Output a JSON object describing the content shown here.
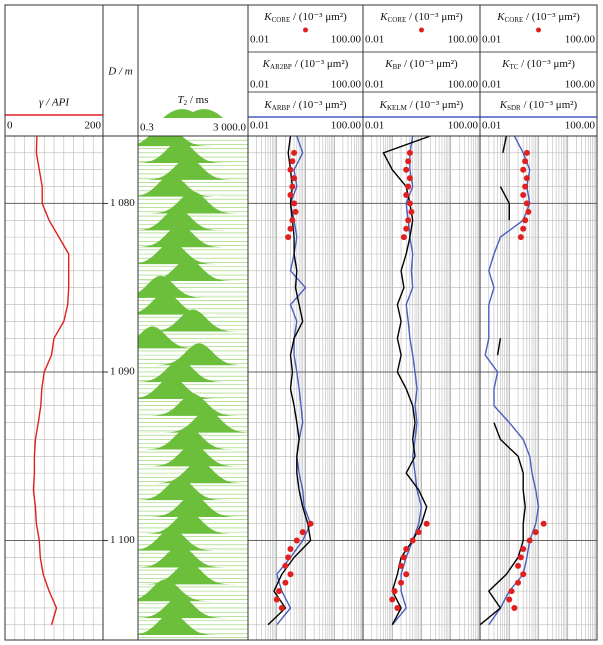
{
  "chart_data": [
    {
      "type": "line",
      "xlabel": "γ / API",
      "xlim": [
        0,
        200
      ],
      "xticks": [
        0,
        200
      ],
      "y": [
        1076,
        1077,
        1078,
        1079,
        1080,
        1081,
        1082,
        1083,
        1084,
        1085,
        1086,
        1087,
        1088,
        1089,
        1090,
        1091,
        1092,
        1093,
        1094,
        1095,
        1096,
        1097,
        1098,
        1099,
        1100,
        1101,
        1102,
        1103,
        1104,
        1105
      ],
      "series": [
        {
          "color": "#e02020",
          "values": [
            65,
            64,
            70,
            76,
            76,
            90,
            110,
            130,
            130,
            130,
            128,
            120,
            100,
            95,
            80,
            75,
            73,
            68,
            62,
            60,
            60,
            58,
            62,
            64,
            70,
            72,
            78,
            90,
            105,
            95
          ]
        }
      ]
    },
    {
      "type": "depth",
      "ylabel": "D / m",
      "ylim": [
        1076,
        1105.9
      ],
      "yticks": [
        {
          "value": 1080,
          "label": "1 080"
        },
        {
          "value": 1090,
          "label": "1 090"
        },
        {
          "value": 1100,
          "label": "1 100"
        }
      ]
    },
    {
      "type": "t2",
      "xlabel": {
        "symbol": "T",
        "subscript": "2",
        "unit": " / ms"
      },
      "log": true,
      "xlim": [
        0.3,
        3000
      ],
      "xticks": [
        0.3,
        {
          "value": 3000,
          "label": "3 000.0"
        }
      ],
      "color": "#6cbf3a",
      "y": [
        1076,
        1077,
        1078,
        1079,
        1080,
        1081,
        1082,
        1083,
        1084,
        1085,
        1086,
        1087,
        1088,
        1089,
        1090,
        1091,
        1092,
        1093,
        1094,
        1095,
        1096,
        1097,
        1098,
        1099,
        1100,
        1101,
        1102,
        1103,
        1104,
        1105
      ],
      "values": [
        3,
        10,
        20,
        5,
        30,
        8,
        10,
        5,
        20,
        2,
        3,
        30,
        1,
        50,
        10,
        5,
        30,
        100,
        20,
        30,
        50,
        10,
        30,
        20,
        5,
        10,
        20,
        3,
        10,
        5
      ]
    },
    {
      "type": "perm",
      "log": true,
      "xlim": [
        0.01,
        100
      ],
      "xticks": [
        0.01,
        {
          "value": 100,
          "label": "100.00"
        }
      ],
      "core": {
        "label": {
          "symbol": "K",
          "subscript": "CORE",
          "unit": " / (10⁻³ μm²)"
        },
        "color": "#e02020",
        "y": [
          1077,
          1077.5,
          1078,
          1078.5,
          1079,
          1079.5,
          1080,
          1080.5,
          1081,
          1081.5,
          1082,
          1099,
          1099.5,
          1100,
          1100.5,
          1101,
          1101.5,
          1102,
          1102.5,
          1103,
          1103.5,
          1104
        ],
        "values": [
          0.4,
          0.35,
          0.3,
          0.4,
          0.35,
          0.3,
          0.4,
          0.45,
          0.35,
          0.3,
          0.25,
          1.5,
          0.8,
          0.5,
          0.3,
          0.25,
          0.2,
          0.3,
          0.2,
          0.12,
          0.1,
          0.15
        ]
      },
      "y": [
        1076,
        1077,
        1078,
        1079,
        1080,
        1081,
        1082,
        1083,
        1084,
        1085,
        1086,
        1087,
        1088,
        1089,
        1090,
        1091,
        1092,
        1093,
        1094,
        1095,
        1096,
        1097,
        1098,
        1099,
        1100,
        1101,
        1102,
        1103,
        1104,
        1105
      ],
      "series": [
        {
          "label": {
            "symbol": "K",
            "subscript": "AR2BP",
            "unit": " / (10⁻³ μm²)"
          },
          "color": "#000000",
          "values": [
            0.3,
            0.25,
            0.3,
            0.35,
            0.3,
            0.35,
            0.4,
            0.4,
            0.5,
            0.45,
            0.6,
            0.8,
            0.4,
            0.3,
            0.35,
            0.3,
            0.4,
            0.5,
            0.6,
            0.5,
            0.5,
            0.6,
            0.8,
            1.2,
            1.5,
            0.4,
            0.15,
            0.08,
            0.2,
            0.05
          ]
        },
        {
          "label": {
            "symbol": "K",
            "subscript": "ARBP",
            "unit": " / (10⁻³ μm²)"
          },
          "color": "#4a5fc0",
          "values": [
            0.5,
            0.8,
            0.4,
            0.5,
            0.3,
            0.4,
            0.5,
            0.4,
            0.3,
            1.0,
            0.3,
            0.5,
            0.4,
            0.4,
            0.5,
            0.6,
            0.7,
            0.8,
            0.6,
            0.5,
            0.6,
            0.8,
            0.9,
            1.5,
            0.8,
            0.3,
            0.1,
            0.15,
            0.3,
            0.1
          ]
        }
      ]
    },
    {
      "type": "perm",
      "log": true,
      "xlim": [
        0.01,
        100
      ],
      "xticks": [
        0.01,
        {
          "value": 100,
          "label": "100.00"
        }
      ],
      "core": {
        "label": {
          "symbol": "K",
          "subscript": "CORE",
          "unit": " / (10⁻³ μm²)"
        },
        "color": "#e02020",
        "y": [
          1077,
          1077.5,
          1078,
          1078.5,
          1079,
          1079.5,
          1080,
          1080.5,
          1081,
          1081.5,
          1082,
          1099,
          1099.5,
          1100,
          1100.5,
          1101,
          1101.5,
          1102,
          1102.5,
          1103,
          1103.5,
          1104
        ],
        "values": [
          0.4,
          0.35,
          0.3,
          0.4,
          0.35,
          0.3,
          0.4,
          0.45,
          0.35,
          0.3,
          0.25,
          1.5,
          0.8,
          0.5,
          0.3,
          0.25,
          0.2,
          0.3,
          0.2,
          0.12,
          0.1,
          0.15
        ]
      },
      "y": [
        1076,
        1077,
        1078,
        1079,
        1080,
        1081,
        1082,
        1083,
        1084,
        1085,
        1086,
        1087,
        1088,
        1089,
        1090,
        1091,
        1092,
        1093,
        1094,
        1095,
        1096,
        1097,
        1098,
        1099,
        1100,
        1101,
        1102,
        1103,
        1104,
        1105
      ],
      "series": [
        {
          "label": {
            "symbol": "K",
            "subscript": "BP",
            "unit": " / (10⁻³ μm²)"
          },
          "color": "#000000",
          "values": [
            2,
            0.05,
            0.1,
            0.3,
            0.4,
            0.5,
            0.4,
            0.3,
            0.2,
            0.25,
            0.15,
            0.2,
            0.15,
            0.2,
            0.15,
            0.3,
            0.5,
            0.6,
            0.5,
            0.6,
            0.3,
            0.8,
            1.5,
            1.0,
            0.5,
            0.2,
            0.15,
            0.1,
            0.2,
            0.1
          ]
        },
        {
          "label": {
            "symbol": "K",
            "subscript": "KELM",
            "unit": " / (10⁻³ μm²)"
          },
          "color": "#4a5fc0",
          "values": [
            0.5,
            0.4,
            0.4,
            0.5,
            0.3,
            0.35,
            0.4,
            0.5,
            0.45,
            0.5,
            0.3,
            0.35,
            0.4,
            0.5,
            0.6,
            0.7,
            0.6,
            0.7,
            0.6,
            0.5,
            0.6,
            0.7,
            1.0,
            0.8,
            0.5,
            0.3,
            0.2,
            0.2,
            0.3,
            0.1
          ]
        }
      ]
    },
    {
      "type": "perm",
      "log": true,
      "xlim": [
        0.01,
        100
      ],
      "xticks": [
        0.01,
        {
          "value": 100,
          "label": "100.00"
        }
      ],
      "core": {
        "label": {
          "symbol": "K",
          "subscript": "CORE",
          "unit": " / (10⁻³ μm²)"
        },
        "color": "#e02020",
        "y": [
          1077,
          1077.5,
          1078,
          1078.5,
          1079,
          1079.5,
          1080,
          1080.5,
          1081,
          1081.5,
          1082,
          1099,
          1099.5,
          1100,
          1100.5,
          1101,
          1101.5,
          1102,
          1102.5,
          1103,
          1103.5,
          1104
        ],
        "values": [
          0.4,
          0.35,
          0.3,
          0.4,
          0.35,
          0.3,
          0.4,
          0.45,
          0.35,
          0.3,
          0.25,
          1.5,
          0.8,
          0.5,
          0.3,
          0.25,
          0.2,
          0.3,
          0.2,
          0.12,
          0.1,
          0.15
        ]
      },
      "y": [
        1076,
        1077,
        1078,
        1079,
        1080,
        1081,
        1082,
        1083,
        1084,
        1085,
        1086,
        1087,
        1088,
        1089,
        1090,
        1091,
        1092,
        1093,
        1094,
        1095,
        1096,
        1097,
        1098,
        1099,
        1100,
        1101,
        1102,
        1103,
        1104,
        1105
      ],
      "series": [
        {
          "label": {
            "symbol": "K",
            "subscript": "TC",
            "unit": " / (10⁻³ μm²)"
          },
          "color": "#000000",
          "values": [
            0.08,
            0.06,
            null,
            0.05,
            0.1,
            0.1,
            null,
            null,
            null,
            null,
            null,
            null,
            0.05,
            0.04,
            null,
            null,
            null,
            0.03,
            0.05,
            0.2,
            0.3,
            0.3,
            0.35,
            0.3,
            0.3,
            0.2,
            0.08,
            0.02,
            0.05,
            0.01
          ]
        },
        {
          "label": {
            "symbol": "K",
            "subscript": "SDR",
            "unit": " / (10⁻³ μm²)"
          },
          "color": "#4a5fc0",
          "values": [
            0.15,
            0.3,
            0.5,
            0.4,
            0.5,
            0.3,
            0.05,
            0.03,
            0.02,
            0.03,
            0.02,
            0.02,
            0.02,
            0.015,
            0.04,
            0.03,
            0.03,
            0.1,
            0.3,
            0.5,
            0.6,
            0.8,
            1.0,
            0.8,
            0.5,
            0.4,
            0.3,
            0.1,
            0.05,
            0.02
          ]
        }
      ]
    }
  ]
}
